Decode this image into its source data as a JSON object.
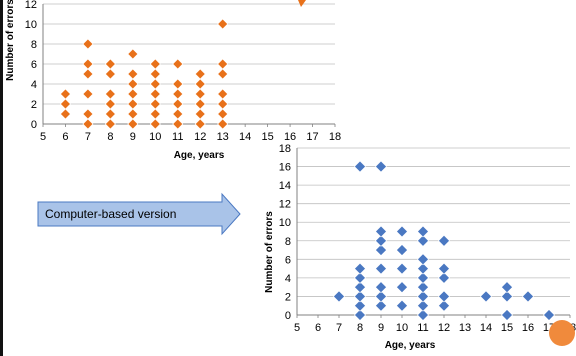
{
  "colors": {
    "orange": "#e8711a",
    "blue": "#4a78c2",
    "accent_circle": "#f08a3c",
    "arrow_fill": "#a9c3e8",
    "arrow_stroke": "#4a78c2",
    "grid": "#bfbfbf"
  },
  "callout": {
    "text": "Computer-based version"
  },
  "chart_data": [
    {
      "type": "scatter",
      "title": "",
      "xlabel": "Age, years",
      "ylabel": "Number of errors",
      "xlim": [
        5,
        18
      ],
      "ylim": [
        0,
        12
      ],
      "x_ticks": [
        "5",
        "6",
        "7",
        "8",
        "9",
        "10",
        "11",
        "12",
        "13",
        "14",
        "15",
        "16",
        "17",
        "18"
      ],
      "y_ticks": [
        "0",
        "2",
        "4",
        "6",
        "8",
        "10",
        "12"
      ],
      "grid": true,
      "marker_color": "#e8711a",
      "points": [
        [
          6,
          1
        ],
        [
          6,
          2
        ],
        [
          6,
          3
        ],
        [
          7,
          0
        ],
        [
          7,
          1
        ],
        [
          7,
          3
        ],
        [
          7,
          5
        ],
        [
          7,
          6
        ],
        [
          7,
          8
        ],
        [
          8,
          0
        ],
        [
          8,
          1
        ],
        [
          8,
          2
        ],
        [
          8,
          3
        ],
        [
          8,
          5
        ],
        [
          8,
          6
        ],
        [
          9,
          0
        ],
        [
          9,
          1
        ],
        [
          9,
          2
        ],
        [
          9,
          3
        ],
        [
          9,
          4
        ],
        [
          9,
          5
        ],
        [
          9,
          7
        ],
        [
          10,
          0
        ],
        [
          10,
          1
        ],
        [
          10,
          2
        ],
        [
          10,
          3
        ],
        [
          10,
          4
        ],
        [
          10,
          5
        ],
        [
          10,
          6
        ],
        [
          11,
          0
        ],
        [
          11,
          1
        ],
        [
          11,
          2
        ],
        [
          11,
          3
        ],
        [
          11,
          4
        ],
        [
          11,
          6
        ],
        [
          12,
          0
        ],
        [
          12,
          1
        ],
        [
          12,
          2
        ],
        [
          12,
          3
        ],
        [
          12,
          4
        ],
        [
          12,
          5
        ],
        [
          13,
          0
        ],
        [
          13,
          1
        ],
        [
          13,
          2
        ],
        [
          13,
          3
        ],
        [
          13,
          5
        ],
        [
          13,
          6
        ],
        [
          13,
          10
        ]
      ]
    },
    {
      "type": "scatter",
      "title": "",
      "xlabel": "Age, years",
      "ylabel": "Number of errors",
      "xlim": [
        5,
        18
      ],
      "ylim": [
        0,
        18
      ],
      "x_ticks": [
        "5",
        "6",
        "7",
        "8",
        "9",
        "10",
        "11",
        "12",
        "13",
        "14",
        "15",
        "16",
        "17",
        "18"
      ],
      "y_ticks": [
        "0",
        "2",
        "4",
        "6",
        "8",
        "10",
        "12",
        "14",
        "16",
        "18"
      ],
      "grid": true,
      "marker_color": "#4a78c2",
      "points": [
        [
          7,
          2
        ],
        [
          8,
          0
        ],
        [
          8,
          1
        ],
        [
          8,
          2
        ],
        [
          8,
          3
        ],
        [
          8,
          4
        ],
        [
          8,
          5
        ],
        [
          8,
          16
        ],
        [
          9,
          1
        ],
        [
          9,
          2
        ],
        [
          9,
          3
        ],
        [
          9,
          5
        ],
        [
          9,
          7
        ],
        [
          9,
          8
        ],
        [
          9,
          9
        ],
        [
          9,
          16
        ],
        [
          10,
          1
        ],
        [
          10,
          3
        ],
        [
          10,
          5
        ],
        [
          10,
          7
        ],
        [
          10,
          9
        ],
        [
          11,
          0
        ],
        [
          11,
          1
        ],
        [
          11,
          2
        ],
        [
          11,
          3
        ],
        [
          11,
          4
        ],
        [
          11,
          5
        ],
        [
          11,
          6
        ],
        [
          11,
          8
        ],
        [
          11,
          9
        ],
        [
          12,
          1
        ],
        [
          12,
          2
        ],
        [
          12,
          4
        ],
        [
          12,
          5
        ],
        [
          12,
          8
        ],
        [
          14,
          2
        ],
        [
          15,
          0
        ],
        [
          15,
          2
        ],
        [
          15,
          3
        ],
        [
          16,
          2
        ],
        [
          17,
          0
        ]
      ]
    }
  ]
}
